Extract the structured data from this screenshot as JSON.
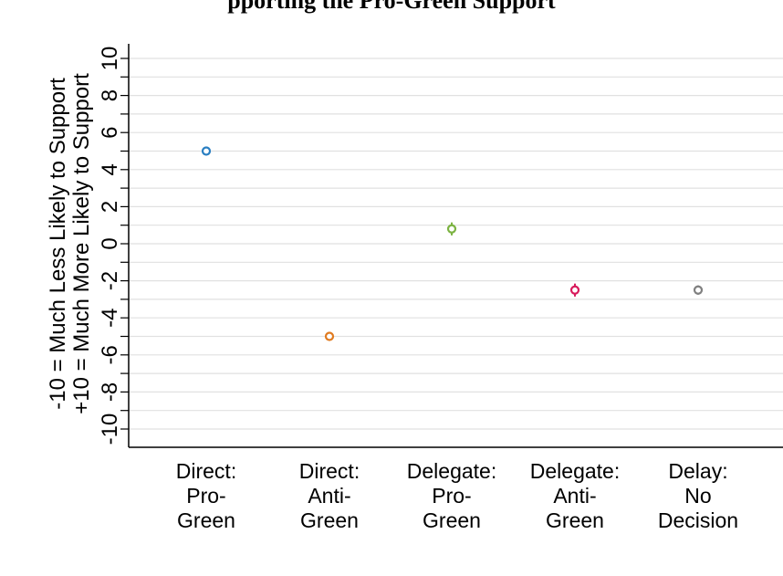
{
  "chart_data": {
    "type": "scatter",
    "title": "pporting the Pro-Green Support",
    "categories": [
      [
        "Direct:",
        "Pro-",
        "Green"
      ],
      [
        "Direct:",
        "Anti-",
        "Green"
      ],
      [
        "Delegate:",
        "Pro-",
        "Green"
      ],
      [
        "Delegate:",
        "Anti-",
        "Green"
      ],
      [
        "Delay:",
        "No",
        "Decision"
      ]
    ],
    "ylabel_lines": [
      "-10 = Much Less Likely to Support",
      "+10 = Much More Likely to Support"
    ],
    "ylim": [
      -10,
      10
    ],
    "yticks": [
      -10,
      -8,
      -6,
      -4,
      -2,
      0,
      2,
      4,
      6,
      8,
      10
    ],
    "grid": true,
    "points": [
      {
        "value": 5.0,
        "ci": [
          4.8,
          5.2
        ],
        "color": "#2A7FC2"
      },
      {
        "value": -5.0,
        "ci": [
          -5.15,
          -4.85
        ],
        "color": "#E07B20"
      },
      {
        "value": 0.8,
        "ci": [
          0.45,
          1.15
        ],
        "color": "#7CB342"
      },
      {
        "value": -2.5,
        "ci": [
          -2.85,
          -2.15
        ],
        "color": "#D81B5C"
      },
      {
        "value": -2.5,
        "ci": [
          -2.75,
          -2.25
        ],
        "color": "#808080"
      }
    ]
  }
}
